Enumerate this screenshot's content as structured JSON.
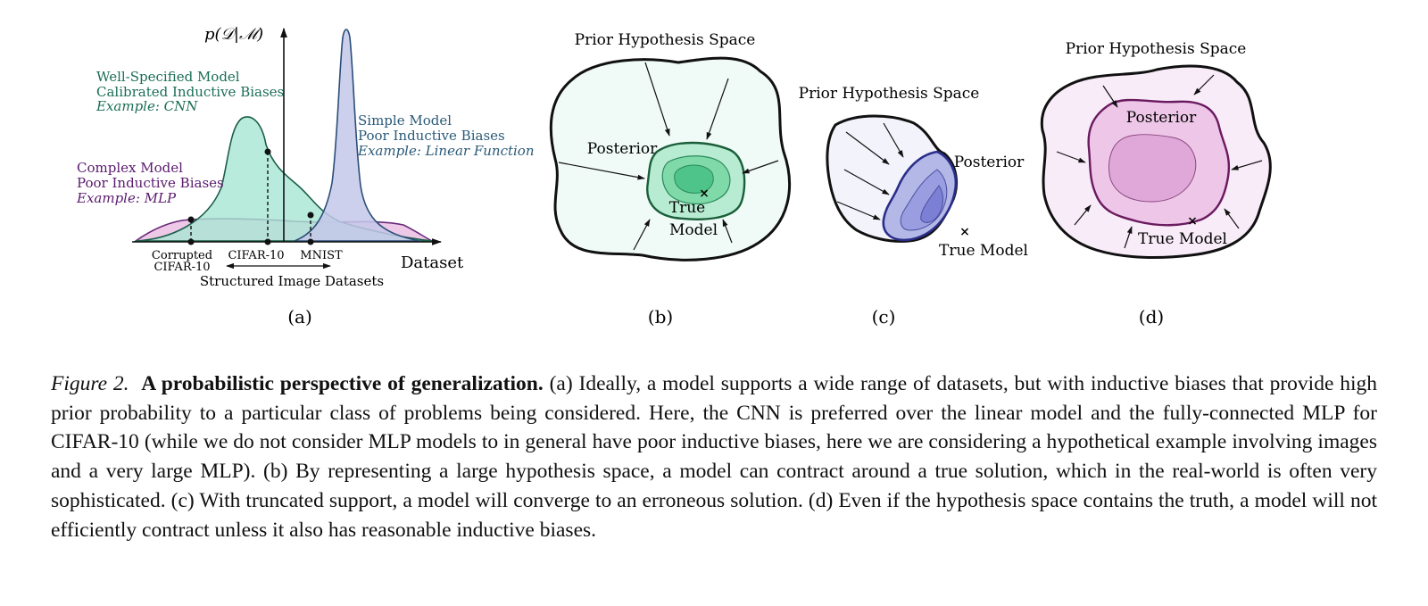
{
  "panel_a": {
    "y_axis_label": "p(𝒟|ℳ)",
    "x_axis_label": "Dataset",
    "well_specified": {
      "title": "Well-Specified Model",
      "bias": "Calibrated Inductive Biases",
      "example": "Example: CNN",
      "color": "#1a6e55",
      "fill": "#a8e6d5"
    },
    "simple": {
      "title": "Simple Model",
      "bias": "Poor Inductive Biases",
      "example": "Example: Linear Function",
      "color": "#2b5a78",
      "fill": "#c4c8ea"
    },
    "complex": {
      "title": "Complex Model",
      "bias": "Poor Inductive Biases",
      "example": "Example: MLP",
      "color": "#5a1a6e",
      "fill": "#e8b6df"
    },
    "tick_corrupted_1": "Corrupted",
    "tick_corrupted_2": "CIFAR-10",
    "tick_cifar": "CIFAR-10",
    "tick_mnist": "MNIST",
    "range_label": "Structured Image Datasets",
    "sub_label": "(a)"
  },
  "panel_b": {
    "space_label": "Prior Hypothesis Space",
    "posterior_label": "Posterior",
    "true_label_1": "True",
    "true_label_2": "Model",
    "marker": "×",
    "sub_label": "(b)"
  },
  "panel_c": {
    "space_label": "Prior Hypothesis Space",
    "posterior_label": "Posterior",
    "true_label": "True Model",
    "marker": "×",
    "sub_label": "(c)"
  },
  "panel_d": {
    "space_label": "Prior Hypothesis Space",
    "posterior_label": "Posterior",
    "true_label": "True Model",
    "marker": "×",
    "sub_label": "(d)"
  },
  "caption": {
    "label": "Figure 2.",
    "title": "A probabilistic perspective of generalization.",
    "body": "(a) Ideally, a model supports a wide range of datasets, but with inductive biases that provide high prior probability to a particular class of problems being considered. Here, the CNN is preferred over the linear model and the fully-connected MLP for CIFAR-10 (while we do not consider MLP models to in general have poor inductive biases, here we are considering a hypothetical example involving images and a very large MLP). (b) By representing a large hypothesis space, a model can contract around a true solution, which in the real-world is often very sophisticated. (c) With truncated support, a model will converge to an erroneous solution. (d) Even if the hypothesis space contains the truth, a model will not efficiently contract unless it also has reasonable inductive biases."
  }
}
